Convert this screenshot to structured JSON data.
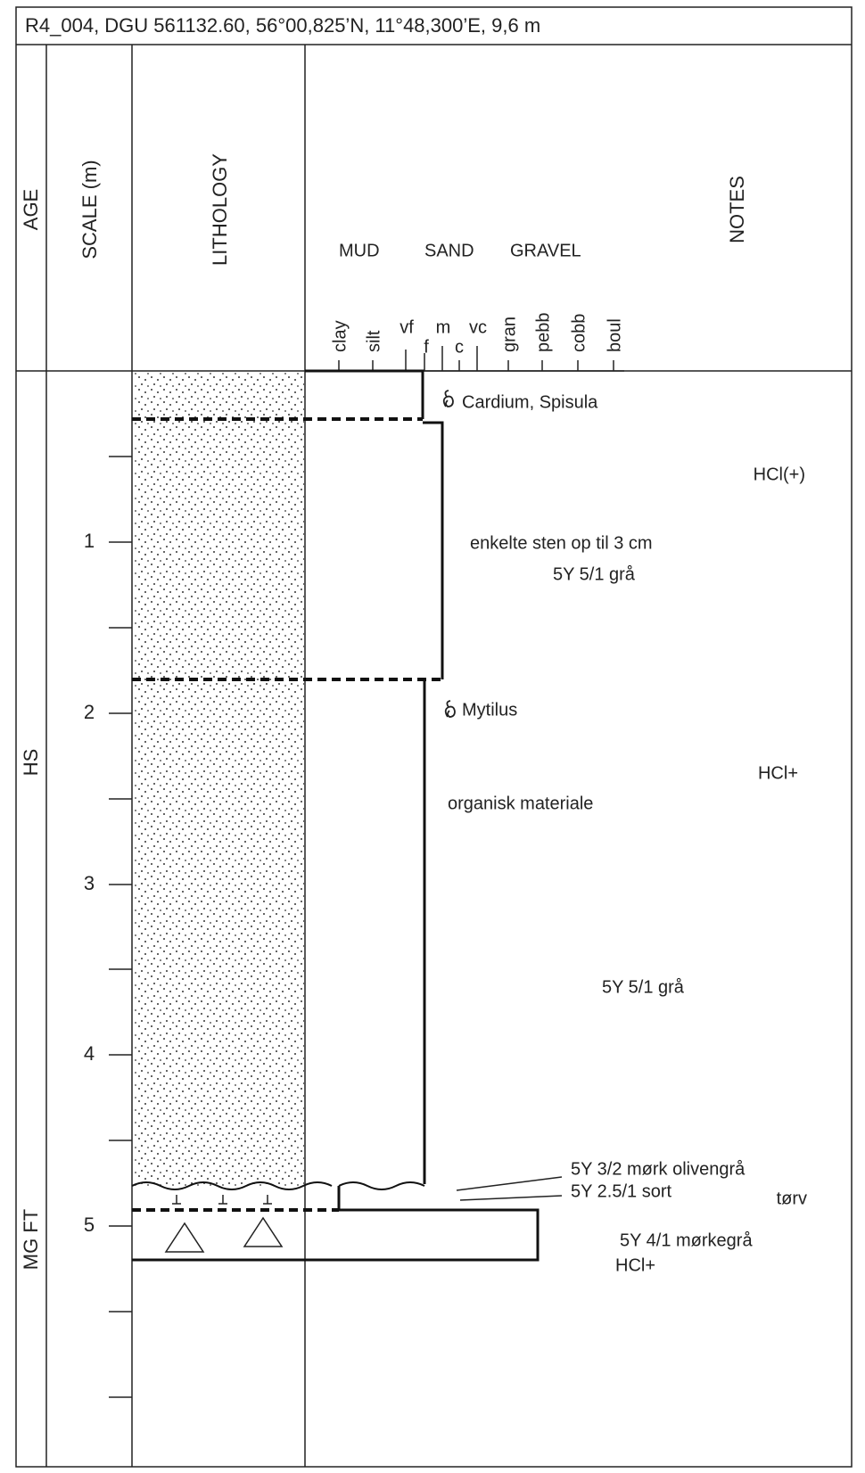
{
  "title": "R4_004, DGU 561132.60, 56°00,825’N, 11°48,300’E, 9,6 m",
  "header": {
    "age": "AGE",
    "scale": "SCALE (m)",
    "lithology": "LITHOLOGY",
    "notes": "NOTES",
    "grain_groups": [
      "MUD",
      "SAND",
      "GRAVEL"
    ],
    "grain_sizes": [
      "clay",
      "silt",
      "vf",
      "f",
      "m",
      "c",
      "vc",
      "gran",
      "pebb",
      "cobb",
      "boul"
    ]
  },
  "ages": [
    "HS",
    "MG FT"
  ],
  "scale_ticks": [
    "1",
    "2",
    "3",
    "4",
    "5"
  ],
  "notes": [
    "Cardium, Spisula",
    "HCl(+)",
    "enkelte sten op til 3 cm",
    "5Y 5/1 grå",
    "Mytilus",
    "HCl+",
    "organisk materiale",
    "5Y 5/1 grå",
    "5Y 3/2 mørk olivengrå",
    "5Y 2.5/1 sort",
    "tørv",
    "5Y 4/1 mørkegrå",
    "HCl+"
  ]
}
